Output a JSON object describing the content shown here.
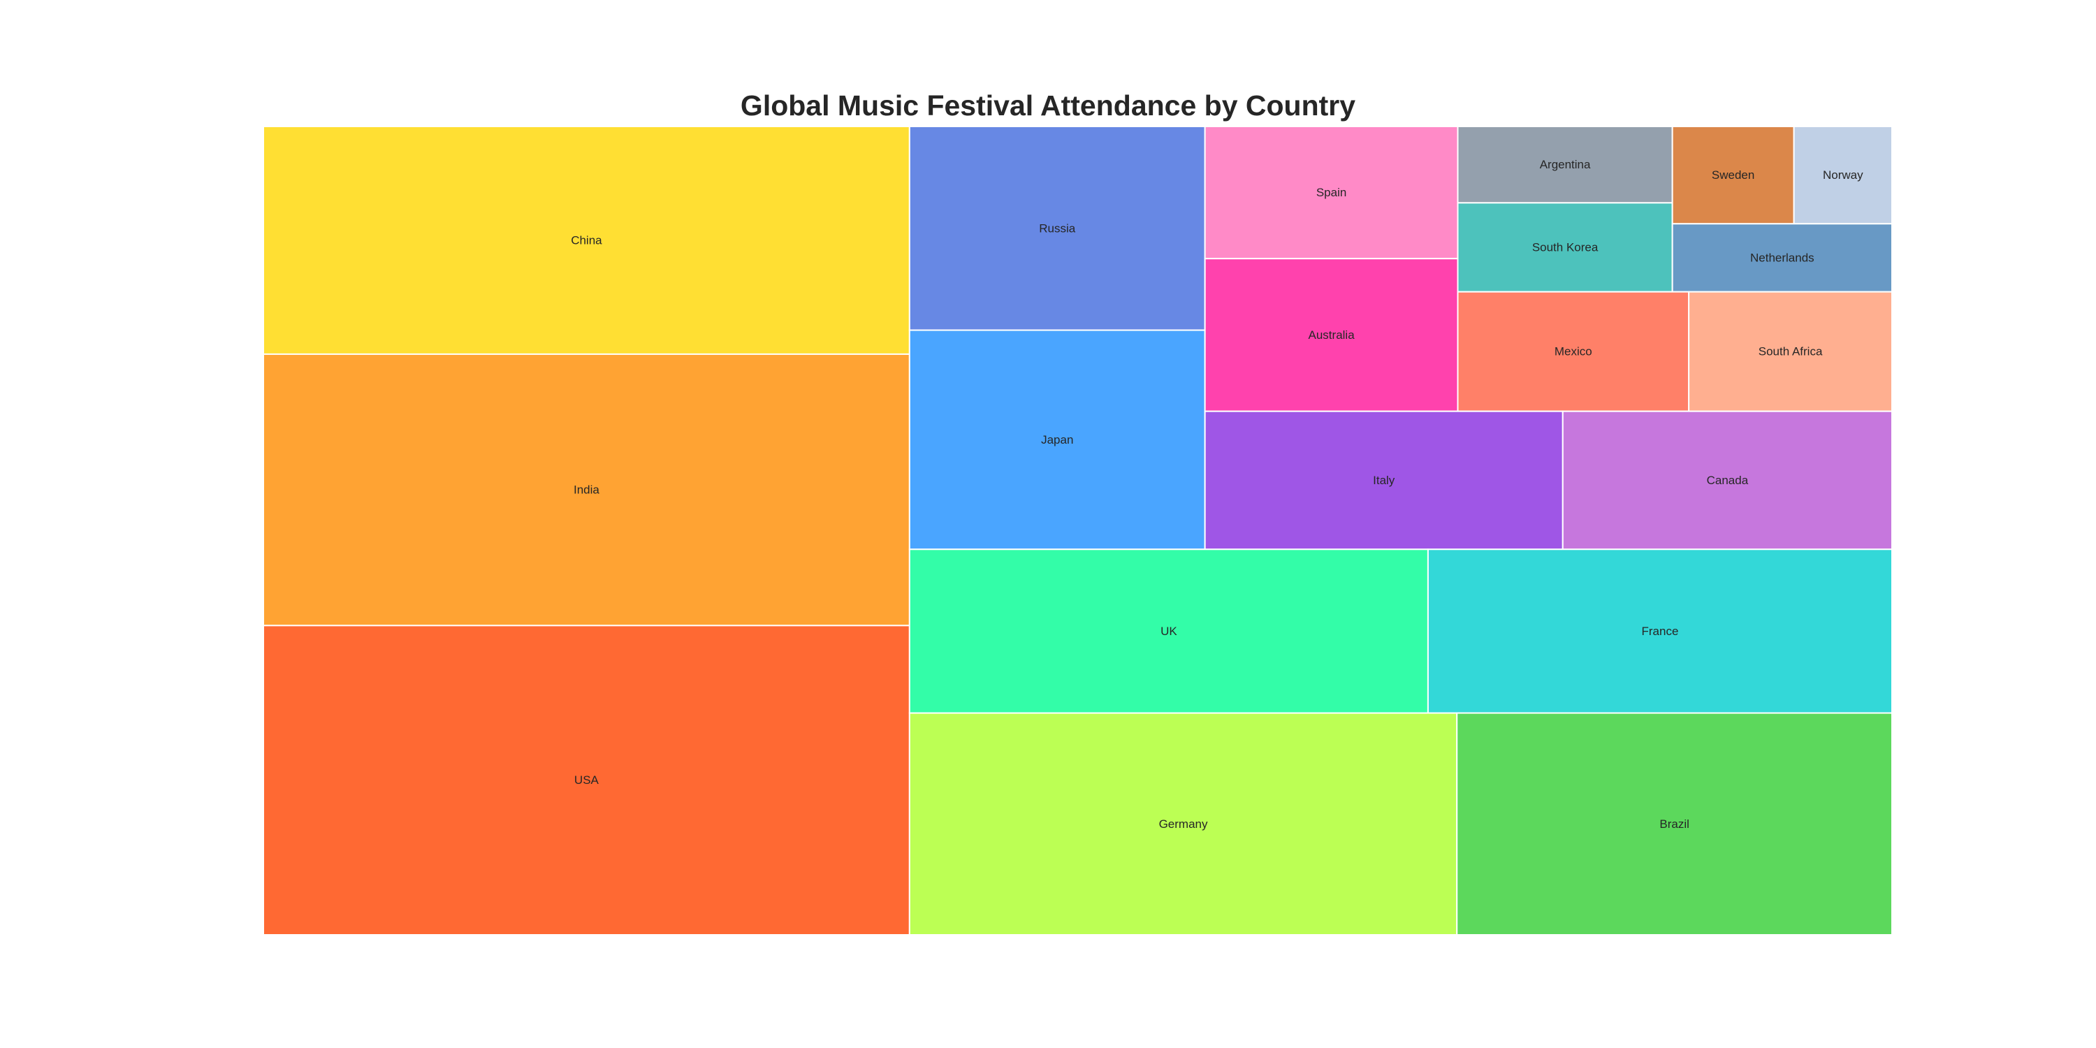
{
  "chart_data": {
    "type": "treemap",
    "title": "Global Music Festival Attendance by Country",
    "items": [
      {
        "label": "China",
        "value": 7.09,
        "color": "#FFDF33"
      },
      {
        "label": "India",
        "value": 8.45,
        "color": "#FFA333"
      },
      {
        "label": "USA",
        "value": 9.63,
        "color": "#FF6933"
      },
      {
        "label": "Russia",
        "value": 2.9,
        "color": "#6788E4"
      },
      {
        "label": "Japan",
        "value": 3.12,
        "color": "#4AA5FF"
      },
      {
        "label": "Spain",
        "value": 1.61,
        "color": "#FF8AC7"
      },
      {
        "label": "Australia",
        "value": 1.86,
        "color": "#FF42AD"
      },
      {
        "label": "Argentina",
        "value": 0.79,
        "color": "#94A0AD"
      },
      {
        "label": "South Korea",
        "value": 0.92,
        "color": "#4DC2BC"
      },
      {
        "label": "Sweden",
        "value": 0.57,
        "color": "#DB874A"
      },
      {
        "label": "Norway",
        "value": 0.46,
        "color": "#C0D0E6"
      },
      {
        "label": "Netherlands",
        "value": 0.72,
        "color": "#6899C5"
      },
      {
        "label": "Mexico",
        "value": 1.33,
        "color": "#FF8068"
      },
      {
        "label": "South Africa",
        "value": 1.17,
        "color": "#FFAF90"
      },
      {
        "label": "Italy",
        "value": 2.38,
        "color": "#9F56E6"
      },
      {
        "label": "Canada",
        "value": 2.19,
        "color": "#C677DD"
      },
      {
        "label": "UK",
        "value": 4.09,
        "color": "#33FDA8"
      },
      {
        "label": "France",
        "value": 3.66,
        "color": "#33D8D8"
      },
      {
        "label": "Germany",
        "value": 5.85,
        "color": "#BCFF54"
      },
      {
        "label": "Brazil",
        "value": 4.65,
        "color": "#5CD85C"
      }
    ]
  }
}
